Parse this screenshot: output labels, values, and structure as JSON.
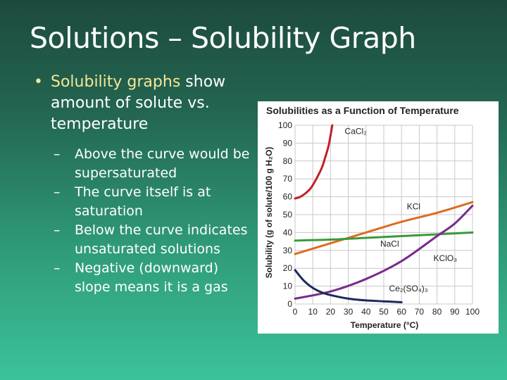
{
  "slide": {
    "title": "Solutions – Solubility Graph",
    "bullet_highlight": "Solubility graphs",
    "bullet_rest": " show amount of solute vs. temperature",
    "sub_bullets": [
      "Above the curve would be supersaturated",
      "The curve itself is at saturation",
      "Below the curve indicates unsaturated solutions",
      "Negative (downward) slope means it is a gas"
    ],
    "bullet_color": "#f2e79a"
  },
  "chart_data": {
    "type": "line",
    "title": "Solubilities as a Function of Temperature",
    "xlabel": "Temperature (°C)",
    "ylabel": "Solubility (g of solute/100 g H₂O)",
    "xlim": [
      0,
      100
    ],
    "ylim": [
      0,
      100
    ],
    "xticks": [
      0,
      10,
      20,
      30,
      40,
      50,
      60,
      70,
      80,
      90,
      100
    ],
    "yticks": [
      0,
      10,
      20,
      30,
      40,
      50,
      60,
      70,
      80,
      90,
      100
    ],
    "grid": true,
    "series": [
      {
        "name": "CaCl₂",
        "color": "#c0202a",
        "x": [
          0,
          3,
          6,
          9,
          12,
          15,
          17,
          19,
          21
        ],
        "y": [
          59,
          60,
          62,
          65,
          70,
          76,
          82,
          89,
          100
        ]
      },
      {
        "name": "KCl",
        "color": "#e06a1e",
        "x": [
          0,
          20,
          40,
          60,
          80,
          100
        ],
        "y": [
          28,
          34,
          40,
          46,
          51,
          57
        ]
      },
      {
        "name": "NaCl",
        "color": "#3a9a3a",
        "x": [
          0,
          20,
          40,
          60,
          80,
          100
        ],
        "y": [
          35.5,
          36,
          37,
          38,
          39,
          40
        ]
      },
      {
        "name": "KClO₃",
        "color": "#7a2a8c",
        "x": [
          0,
          20,
          40,
          60,
          80,
          90,
          100
        ],
        "y": [
          3,
          7,
          14,
          24,
          38,
          45,
          55
        ]
      },
      {
        "name": "Ce₂(SO₄)₃",
        "color": "#1c2a5a",
        "x": [
          0,
          5,
          10,
          15,
          20,
          30,
          40,
          50,
          60
        ],
        "y": [
          19,
          13,
          9,
          6.5,
          5,
          3,
          2,
          1.5,
          1
        ]
      }
    ],
    "labels": [
      {
        "text": "CaCl₂",
        "x": 28,
        "y": 95
      },
      {
        "text": "KCl",
        "x": 63,
        "y": 53
      },
      {
        "text": "NaCl",
        "x": 48,
        "y": 32
      },
      {
        "text": "KClO₃",
        "x": 78,
        "y": 24
      },
      {
        "text": "Ce₂(SO₄)₃",
        "x": 53,
        "y": 7
      }
    ]
  }
}
